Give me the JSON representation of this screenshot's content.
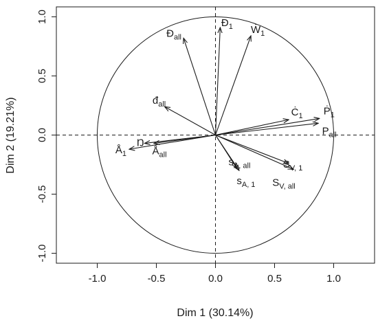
{
  "chart_data": {
    "type": "scatter",
    "plot_kind": "pca-variable-correlation-circle",
    "xlabel": "Dim 1 (30.14%)",
    "ylabel": "Dim 2 (19.21%)",
    "xlim": [
      -1.3,
      1.3
    ],
    "ylim": [
      -1.1,
      1.1
    ],
    "x_ticks": [
      "-1.0",
      "-0.5",
      "0.0",
      "0.5",
      "1.0"
    ],
    "x_tick_values": [
      -1.0,
      -0.5,
      0.0,
      0.5,
      1.0
    ],
    "y_ticks": [
      "-1.0",
      "-0.5",
      "0.0",
      "0.5",
      "1.0"
    ],
    "y_tick_values": [
      -1.0,
      -0.5,
      0.0,
      0.5,
      1.0
    ],
    "unit_circle": true,
    "reference_lines": "dashed at x=0 and y=0",
    "grid": false,
    "legend": "none",
    "vectors": [
      {
        "name": "Đ",
        "sub": "1",
        "x": 0.04,
        "y": 0.91
      },
      {
        "name": "Ẇ",
        "sub": "1",
        "x": 0.3,
        "y": 0.84
      },
      {
        "name": "Đ",
        "sub": "all",
        "x": -0.27,
        "y": 0.82
      },
      {
        "name": "đ",
        "sub": "all",
        "x": -0.43,
        "y": 0.24
      },
      {
        "name": "Ċ",
        "sub": "1",
        "x": 0.62,
        "y": 0.13
      },
      {
        "name": "Ṗ",
        "sub": "1",
        "x": 0.88,
        "y": 0.14
      },
      {
        "name": "P",
        "sub": "all",
        "x": 0.87,
        "y": 0.1
      },
      {
        "name": "Ŋ",
        "sub": "",
        "x": -0.6,
        "y": -0.07
      },
      {
        "name": "Å",
        "sub": "1",
        "x": -0.73,
        "y": -0.12
      },
      {
        "name": "Å",
        "sub": "all",
        "x": -0.52,
        "y": -0.07
      },
      {
        "name": "s",
        "sub": "A, all",
        "x": 0.18,
        "y": -0.28
      },
      {
        "name": "s",
        "sub": "A, 1",
        "x": 0.2,
        "y": -0.3
      },
      {
        "name": "S",
        "sub": "V, 1",
        "x": 0.62,
        "y": -0.24
      },
      {
        "name": "S",
        "sub": "V, all",
        "x": 0.66,
        "y": -0.29
      }
    ]
  },
  "colors": {
    "line": "#1a1a1a",
    "background": "#ffffff"
  }
}
